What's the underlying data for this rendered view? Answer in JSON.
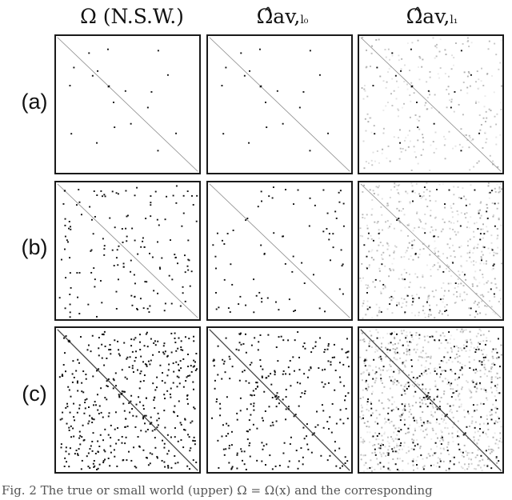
{
  "columns": [
    {
      "main": "Ω (N.S.W.)",
      "sub": ""
    },
    {
      "main": "Ω̂av,",
      "sub": "l₀"
    },
    {
      "main": "Ω̂av,",
      "sub": "l₁"
    }
  ],
  "rows": [
    {
      "label": "(a)"
    },
    {
      "label": "(b)"
    },
    {
      "label": "(c)"
    }
  ],
  "caption": "Fig. 2   The true or small world (upper) Ω = Ω(x) and the corresponding"
}
